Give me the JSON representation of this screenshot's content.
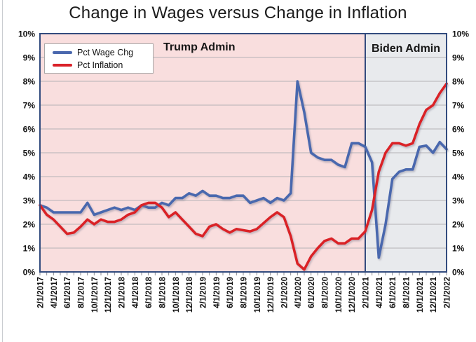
{
  "title": "Change in Wages versus Change in Inflation",
  "legend": {
    "wage_label": "Pct Wage Chg",
    "inflation_label": "Pct Inflation"
  },
  "regions": {
    "trump_label": "Trump Admin",
    "biden_label": "Biden Admin"
  },
  "colors": {
    "wage_line": "#4a68ae",
    "inflation_line": "#da2128",
    "trump_bg": "#f9dede",
    "biden_bg": "#e8eaed",
    "plot_border": "#324b7e",
    "gridline": "#b5b1b5",
    "tick": "#8a8a92",
    "label_text": "#121212"
  },
  "chart_data": {
    "type": "line",
    "title": "Change in Wages versus Change in Inflation",
    "xlabel": "",
    "ylabel": "",
    "ylim": [
      0,
      10
    ],
    "grid": "horizontal",
    "legend_position": "top-left-inside",
    "y_tick_labels": [
      "0%",
      "1%",
      "2%",
      "3%",
      "4%",
      "5%",
      "6%",
      "7%",
      "8%",
      "9%",
      "10%"
    ],
    "x_tick_labels": [
      "2/1/2017",
      "4/1/2017",
      "6/1/2017",
      "8/1/2017",
      "10/1/2017",
      "12/1/2017",
      "2/1/2018",
      "4/1/2018",
      "6/1/2018",
      "8/1/2018",
      "10/1/2018",
      "12/1/2018",
      "2/1/2019",
      "4/1/2019",
      "6/1/2019",
      "8/1/2019",
      "10/1/2019",
      "12/1/2019",
      "2/1/2020",
      "4/1/2020",
      "6/1/2020",
      "8/1/2020",
      "10/1/2020",
      "12/1/2020",
      "2/1/2021",
      "4/1/2021",
      "6/1/2021",
      "8/1/2021",
      "10/1/2021",
      "12/1/2021",
      "2/1/2022"
    ],
    "x_monthly_from": "2/1/2017",
    "x_monthly_to": "2/1/2022",
    "annotations": [
      "Trump Admin",
      "Biden Admin"
    ],
    "biden_region_start": "2/1/2021",
    "biden_region_start_index": 48,
    "series": [
      {
        "name": "Pct Wage Chg",
        "color": "#4a68ae",
        "values": [
          2.8,
          2.7,
          2.5,
          2.5,
          2.5,
          2.5,
          2.5,
          2.9,
          2.4,
          2.5,
          2.6,
          2.7,
          2.6,
          2.7,
          2.6,
          2.8,
          2.7,
          2.7,
          2.9,
          2.8,
          3.1,
          3.1,
          3.3,
          3.2,
          3.4,
          3.2,
          3.2,
          3.1,
          3.1,
          3.2,
          3.2,
          2.9,
          3.0,
          3.1,
          2.9,
          3.1,
          3.0,
          3.3,
          8.0,
          6.7,
          5.0,
          4.8,
          4.7,
          4.7,
          4.5,
          4.4,
          5.4,
          5.4,
          5.25,
          4.6,
          0.6,
          2.0,
          3.9,
          4.2,
          4.3,
          4.3,
          5.25,
          5.3,
          5.0,
          5.45,
          5.15
        ]
      },
      {
        "name": "Pct Inflation",
        "color": "#da2128",
        "values": [
          2.8,
          2.4,
          2.2,
          1.9,
          1.6,
          1.65,
          1.9,
          2.2,
          2.0,
          2.2,
          2.1,
          2.1,
          2.2,
          2.4,
          2.5,
          2.8,
          2.9,
          2.9,
          2.7,
          2.3,
          2.5,
          2.2,
          1.9,
          1.6,
          1.5,
          1.9,
          2.0,
          1.8,
          1.65,
          1.8,
          1.75,
          1.7,
          1.8,
          2.05,
          2.3,
          2.5,
          2.3,
          1.5,
          0.35,
          0.1,
          0.65,
          1.0,
          1.3,
          1.4,
          1.2,
          1.2,
          1.4,
          1.4,
          1.7,
          2.6,
          4.2,
          5.0,
          5.4,
          5.4,
          5.3,
          5.4,
          6.2,
          6.8,
          7.0,
          7.5,
          7.9
        ]
      }
    ]
  }
}
